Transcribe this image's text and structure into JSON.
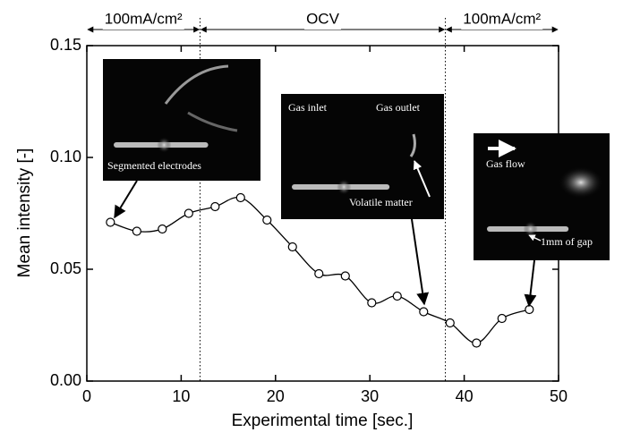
{
  "chart_data": {
    "type": "scatter",
    "x_label": "Experimental time [sec.]",
    "y_label": "Mean intensity [-]",
    "xlim": [
      0,
      50
    ],
    "xticks": [
      0,
      10,
      20,
      30,
      40,
      50
    ],
    "ylim": [
      0,
      0.15
    ],
    "yticks": [
      {
        "value": 0,
        "label": "0.00"
      },
      {
        "value": 0.05,
        "label": "0.05"
      },
      {
        "value": 0.1,
        "label": "0.10"
      },
      {
        "value": 0.15,
        "label": "0.15"
      }
    ],
    "color": "#000000",
    "x": [
      2.5,
      5.3,
      8.0,
      10.8,
      13.6,
      16.3,
      19.1,
      21.8,
      24.6,
      27.4,
      30.2,
      32.9,
      35.7,
      38.5,
      41.3,
      44.0,
      46.9
    ],
    "values": [
      0.071,
      0.067,
      0.068,
      0.075,
      0.078,
      0.082,
      0.072,
      0.06,
      0.048,
      0.047,
      0.035,
      0.038,
      0.031,
      0.026,
      0.017,
      0.028,
      0.032
    ],
    "phases": [
      {
        "label": "100mA/cm²",
        "start": 0,
        "end": 12
      },
      {
        "label": "OCV",
        "start": 12,
        "end": 38
      },
      {
        "label": "100mA/cm²",
        "start": 38,
        "end": 50
      }
    ],
    "insets": [
      {
        "captions": [
          "Segmented electrodes"
        ]
      },
      {
        "captions": [
          "Gas inlet",
          "Gas outlet",
          "Volatile matter"
        ]
      },
      {
        "captions": [
          "Gas flow",
          "1mm of gap"
        ]
      }
    ]
  }
}
